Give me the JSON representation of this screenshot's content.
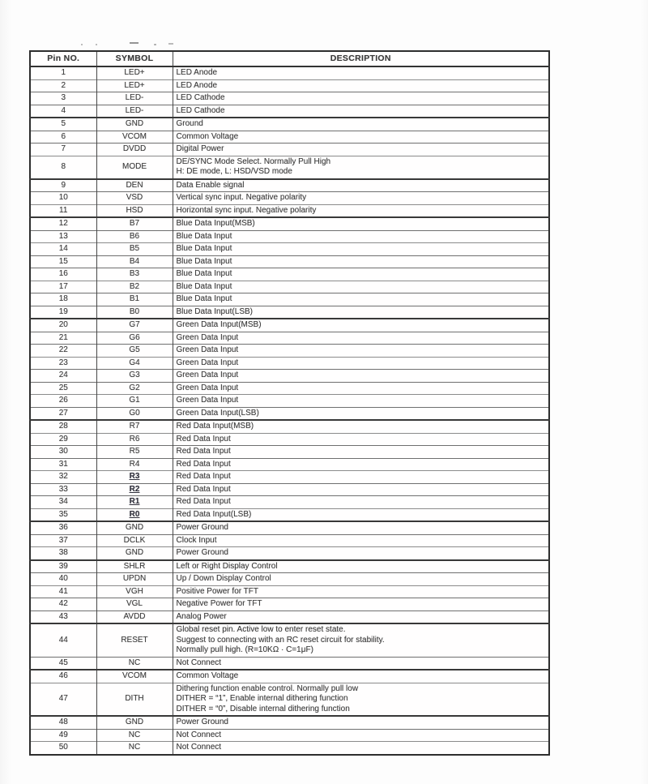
{
  "pin_table": {
    "columns": [
      "Pin NO.",
      "SYMBOL",
      "DESCRIPTION"
    ],
    "rows": [
      {
        "pin": "1",
        "symbol": "LED+",
        "desc": "LED Anode"
      },
      {
        "pin": "2",
        "symbol": "LED+",
        "desc": "LED Anode"
      },
      {
        "pin": "3",
        "symbol": "LED-",
        "desc": "LED Cathode"
      },
      {
        "pin": "4",
        "symbol": "LED-",
        "desc": "LED Cathode"
      },
      {
        "pin": "5",
        "symbol": "GND",
        "desc": "Ground"
      },
      {
        "pin": "6",
        "symbol": "VCOM",
        "desc": "Common Voltage"
      },
      {
        "pin": "7",
        "symbol": "DVDD",
        "desc": "Digital Power"
      },
      {
        "pin": "8",
        "symbol": "MODE",
        "desc": "DE/SYNC Mode Select. Normally Pull High\nH: DE mode, L: HSD/VSD mode"
      },
      {
        "pin": "9",
        "symbol": "DEN",
        "desc": "Data Enable signal"
      },
      {
        "pin": "10",
        "symbol": "VSD",
        "desc": "Vertical sync input. Negative polarity"
      },
      {
        "pin": "11",
        "symbol": "HSD",
        "desc": "Horizontal sync input. Negative polarity"
      },
      {
        "pin": "12",
        "symbol": "B7",
        "desc": "Blue Data Input(MSB)"
      },
      {
        "pin": "13",
        "symbol": "B6",
        "desc": "Blue Data Input"
      },
      {
        "pin": "14",
        "symbol": "B5",
        "desc": "Blue Data Input"
      },
      {
        "pin": "15",
        "symbol": "B4",
        "desc": "Blue Data Input"
      },
      {
        "pin": "16",
        "symbol": "B3",
        "desc": "Blue Data Input"
      },
      {
        "pin": "17",
        "symbol": "B2",
        "desc": "Blue Data Input"
      },
      {
        "pin": "18",
        "symbol": "B1",
        "desc": "Blue Data Input"
      },
      {
        "pin": "19",
        "symbol": "B0",
        "desc": "Blue Data Input(LSB)"
      },
      {
        "pin": "20",
        "symbol": "G7",
        "desc": "Green Data Input(MSB)"
      },
      {
        "pin": "21",
        "symbol": "G6",
        "desc": "Green Data Input"
      },
      {
        "pin": "22",
        "symbol": "G5",
        "desc": "Green Data Input"
      },
      {
        "pin": "23",
        "symbol": "G4",
        "desc": "Green Data Input"
      },
      {
        "pin": "24",
        "symbol": "G3",
        "desc": "Green Data Input"
      },
      {
        "pin": "25",
        "symbol": "G2",
        "desc": "Green Data Input"
      },
      {
        "pin": "26",
        "symbol": "G1",
        "desc": "Green Data Input"
      },
      {
        "pin": "27",
        "symbol": "G0",
        "desc": "Green Data Input(LSB)"
      },
      {
        "pin": "28",
        "symbol": "R7",
        "desc": "Red Data Input(MSB)"
      },
      {
        "pin": "29",
        "symbol": "R6",
        "desc": "Red Data Input"
      },
      {
        "pin": "30",
        "symbol": "R5",
        "desc": "Red Data Input"
      },
      {
        "pin": "31",
        "symbol": "R4",
        "desc": "Red Data Input"
      },
      {
        "pin": "32",
        "symbol": "R3",
        "desc": "Red Data Input"
      },
      {
        "pin": "33",
        "symbol": "R2",
        "desc": "Red Data Input"
      },
      {
        "pin": "34",
        "symbol": "R1",
        "desc": "Red Data Input"
      },
      {
        "pin": "35",
        "symbol": "R0",
        "desc": "Red Data Input(LSB)"
      },
      {
        "pin": "36",
        "symbol": "GND",
        "desc": "Power Ground"
      },
      {
        "pin": "37",
        "symbol": "DCLK",
        "desc": "Clock Input"
      },
      {
        "pin": "38",
        "symbol": "GND",
        "desc": "Power Ground"
      },
      {
        "pin": "39",
        "symbol": "SHLR",
        "desc": "Left or Right Display Control"
      },
      {
        "pin": "40",
        "symbol": "UPDN",
        "desc": "Up / Down Display Control"
      },
      {
        "pin": "41",
        "symbol": "VGH",
        "desc": "Positive Power for TFT"
      },
      {
        "pin": "42",
        "symbol": "VGL",
        "desc": "Negative Power for TFT"
      },
      {
        "pin": "43",
        "symbol": "AVDD",
        "desc": "Analog Power"
      },
      {
        "pin": "44",
        "symbol": "RESET",
        "desc": "Global reset pin. Active low to enter reset state.\nSuggest to connecting with an RC reset circuit for stability.\nNormally pull high. (R=10KΩ · C=1μF)"
      },
      {
        "pin": "45",
        "symbol": "NC",
        "desc": "Not Connect"
      },
      {
        "pin": "46",
        "symbol": "VCOM",
        "desc": "Common Voltage"
      },
      {
        "pin": "47",
        "symbol": "DITH",
        "desc": "Dithering function enable control. Normally pull low\nDITHER = “1”, Enable internal dithering function\nDITHER = “0”, Disable internal dithering function"
      },
      {
        "pin": "48",
        "symbol": "GND",
        "desc": "Power Ground"
      },
      {
        "pin": "49",
        "symbol": "NC",
        "desc": "Not Connect"
      },
      {
        "pin": "50",
        "symbol": "NC",
        "desc": "Not Connect"
      }
    ]
  }
}
